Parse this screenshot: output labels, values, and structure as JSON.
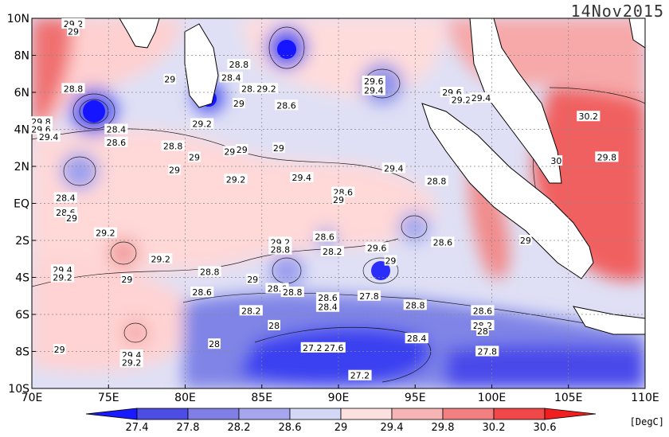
{
  "date": "14Nov2015",
  "unit": "[DegC]",
  "map": {
    "lon_range": [
      70,
      110
    ],
    "lat_range": [
      -10,
      10
    ],
    "lon_ticks": [
      "70E",
      "75E",
      "80E",
      "85E",
      "90E",
      "95E",
      "100E",
      "105E",
      "110E"
    ],
    "lat_ticks": [
      "10N",
      "8N",
      "6N",
      "4N",
      "2N",
      "EQ",
      "2S",
      "4S",
      "6S",
      "8S",
      "10S"
    ]
  },
  "colorbar": {
    "levels": [
      "27.4",
      "27.8",
      "28.2",
      "28.6",
      "29",
      "29.4",
      "29.8",
      "30.2",
      "30.6"
    ],
    "colors": [
      "#1a1aff",
      "#4d4de6",
      "#7f7fe6",
      "#a6a6ee",
      "#d4d8f7",
      "#ffe0e0",
      "#f7b4b4",
      "#f28080",
      "#f04848",
      "#f01e1e"
    ]
  },
  "contour_labels": [
    {
      "text": "29.2",
      "lon": 72.7,
      "lat": 9.7
    },
    {
      "text": "29",
      "lon": 72.7,
      "lat": 9.3
    },
    {
      "text": "28.8",
      "lon": 83.5,
      "lat": 7.5
    },
    {
      "text": "28.4",
      "lon": 83.0,
      "lat": 6.8
    },
    {
      "text": "28.8",
      "lon": 84.3,
      "lat": 6.2
    },
    {
      "text": "28.8",
      "lon": 72.7,
      "lat": 6.2
    },
    {
      "text": "29",
      "lon": 79.0,
      "lat": 6.7
    },
    {
      "text": "29.2",
      "lon": 85.3,
      "lat": 6.2
    },
    {
      "text": "29",
      "lon": 83.5,
      "lat": 5.4
    },
    {
      "text": "28.6",
      "lon": 86.6,
      "lat": 5.3
    },
    {
      "text": "29.6",
      "lon": 92.3,
      "lat": 6.6
    },
    {
      "text": "29.4",
      "lon": 92.3,
      "lat": 6.1
    },
    {
      "text": "29.6",
      "lon": 97.4,
      "lat": 6.0
    },
    {
      "text": "29.2",
      "lon": 98.0,
      "lat": 5.6
    },
    {
      "text": "29.4",
      "lon": 99.3,
      "lat": 5.7
    },
    {
      "text": "29.8",
      "lon": 70.6,
      "lat": 4.4
    },
    {
      "text": "29.6",
      "lon": 70.6,
      "lat": 4.0
    },
    {
      "text": "29.4",
      "lon": 71.1,
      "lat": 3.6
    },
    {
      "text": "28.4",
      "lon": 75.5,
      "lat": 4.0
    },
    {
      "text": "28.6",
      "lon": 75.5,
      "lat": 3.3
    },
    {
      "text": "29.2",
      "lon": 81.1,
      "lat": 4.3
    },
    {
      "text": "28.8",
      "lon": 79.2,
      "lat": 3.1
    },
    {
      "text": "29",
      "lon": 80.6,
      "lat": 2.5
    },
    {
      "text": "29",
      "lon": 82.9,
      "lat": 2.8
    },
    {
      "text": "29",
      "lon": 83.7,
      "lat": 2.9
    },
    {
      "text": "29",
      "lon": 86.1,
      "lat": 3.0
    },
    {
      "text": "30.2",
      "lon": 106.3,
      "lat": 4.7
    },
    {
      "text": "30",
      "lon": 104.2,
      "lat": 2.3
    },
    {
      "text": "29.8",
      "lon": 107.5,
      "lat": 2.5
    },
    {
      "text": "29",
      "lon": 79.3,
      "lat": 1.8
    },
    {
      "text": "29.2",
      "lon": 83.3,
      "lat": 1.3
    },
    {
      "text": "29.4",
      "lon": 87.6,
      "lat": 1.4
    },
    {
      "text": "29.4",
      "lon": 93.6,
      "lat": 1.9
    },
    {
      "text": "28.8",
      "lon": 96.4,
      "lat": 1.2
    },
    {
      "text": "28.6",
      "lon": 90.3,
      "lat": 0.6
    },
    {
      "text": "29",
      "lon": 90.0,
      "lat": 0.2
    },
    {
      "text": "28.4",
      "lon": 72.2,
      "lat": 0.3
    },
    {
      "text": "28.6",
      "lon": 72.2,
      "lat": -0.5
    },
    {
      "text": "29",
      "lon": 72.6,
      "lat": -0.8
    },
    {
      "text": "29.2",
      "lon": 74.8,
      "lat": -1.6
    },
    {
      "text": "28.6",
      "lon": 96.8,
      "lat": -2.1
    },
    {
      "text": "29.2",
      "lon": 86.2,
      "lat": -2.1
    },
    {
      "text": "28.8",
      "lon": 86.2,
      "lat": -2.5
    },
    {
      "text": "28.6",
      "lon": 89.1,
      "lat": -1.8
    },
    {
      "text": "28.2",
      "lon": 89.6,
      "lat": -2.6
    },
    {
      "text": "29.6",
      "lon": 92.5,
      "lat": -2.4
    },
    {
      "text": "29",
      "lon": 93.4,
      "lat": -3.1
    },
    {
      "text": "29",
      "lon": 102.2,
      "lat": -2.0
    },
    {
      "text": "29.2",
      "lon": 78.4,
      "lat": -3.0
    },
    {
      "text": "29.4",
      "lon": 72.0,
      "lat": -3.6
    },
    {
      "text": "29.2",
      "lon": 72.0,
      "lat": -4.0
    },
    {
      "text": "29",
      "lon": 76.2,
      "lat": -4.1
    },
    {
      "text": "28.8",
      "lon": 81.6,
      "lat": -3.7
    },
    {
      "text": "29",
      "lon": 84.4,
      "lat": -4.1
    },
    {
      "text": "28.6",
      "lon": 81.1,
      "lat": -4.8
    },
    {
      "text": "28.6",
      "lon": 86.0,
      "lat": -4.6
    },
    {
      "text": "28.8",
      "lon": 87.0,
      "lat": -4.8
    },
    {
      "text": "27.8",
      "lon": 92.0,
      "lat": -5.0
    },
    {
      "text": "28.6",
      "lon": 89.3,
      "lat": -5.1
    },
    {
      "text": "28.4",
      "lon": 89.3,
      "lat": -5.6
    },
    {
      "text": "28.8",
      "lon": 95.0,
      "lat": -5.5
    },
    {
      "text": "28.6",
      "lon": 99.4,
      "lat": -5.8
    },
    {
      "text": "28.2",
      "lon": 84.3,
      "lat": -5.8
    },
    {
      "text": "28",
      "lon": 85.8,
      "lat": -6.6
    },
    {
      "text": "28.2",
      "lon": 99.4,
      "lat": -6.6
    },
    {
      "text": "28",
      "lon": 99.4,
      "lat": -6.9
    },
    {
      "text": "28",
      "lon": 81.9,
      "lat": -7.6
    },
    {
      "text": "28.4",
      "lon": 95.1,
      "lat": -7.3
    },
    {
      "text": "27.2",
      "lon": 88.3,
      "lat": -7.8
    },
    {
      "text": "27.6",
      "lon": 89.7,
      "lat": -7.8
    },
    {
      "text": "27.8",
      "lon": 99.7,
      "lat": -8.0
    },
    {
      "text": "29",
      "lon": 71.8,
      "lat": -7.9
    },
    {
      "text": "29.4",
      "lon": 76.5,
      "lat": -8.2
    },
    {
      "text": "29.2",
      "lon": 76.5,
      "lat": -8.6
    },
    {
      "text": "27.2",
      "lon": 91.4,
      "lat": -9.3
    }
  ]
}
